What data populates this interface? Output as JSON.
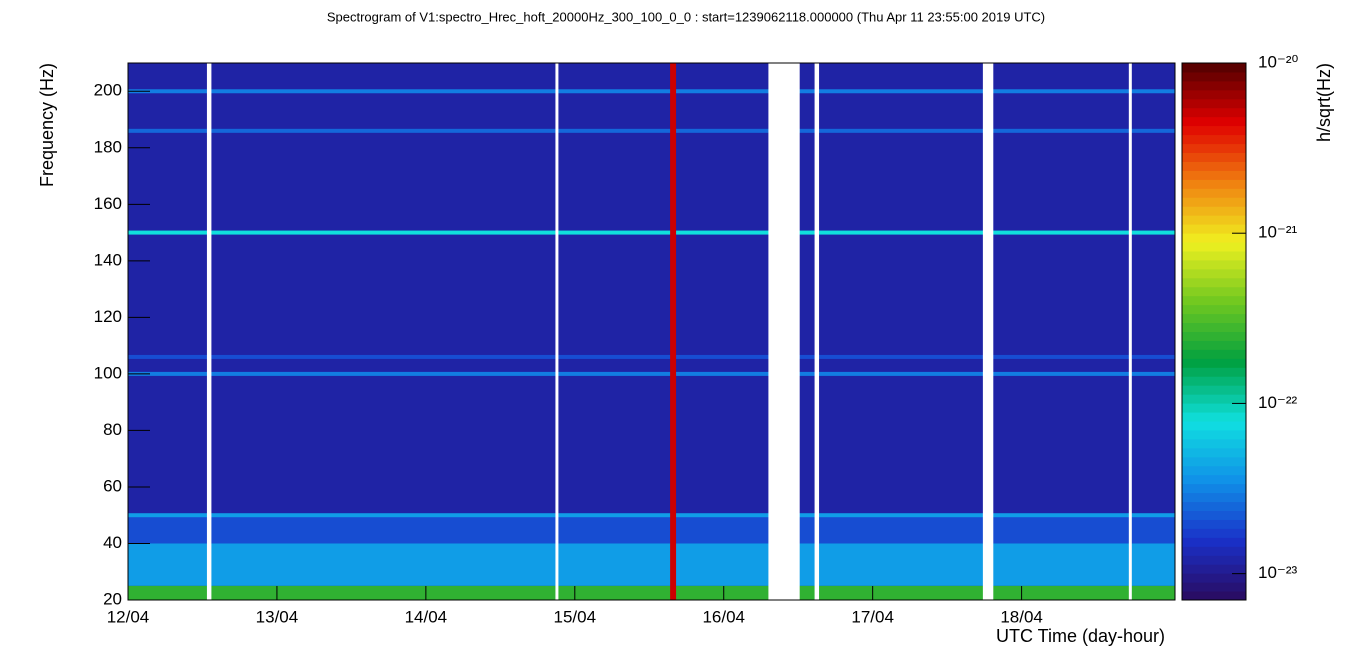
{
  "chart_data": {
    "type": "spectrogram",
    "title": "Spectrogram of V1:spectro_Hrec_hoft_20000Hz_300_100_0_0 : start=1239062118.000000 (Thu Apr 11 23:55:00 2019 UTC)",
    "x_label": "UTC Time (day-hour)",
    "y_label": "Frequency (Hz)",
    "colorbar_label": "h/sqrt(Hz)",
    "xlim": [
      0,
      7.03
    ],
    "xticks": [
      {
        "value": 0,
        "label": "12/04"
      },
      {
        "value": 1,
        "label": "13/04"
      },
      {
        "value": 2,
        "label": "14/04"
      },
      {
        "value": 3,
        "label": "15/04"
      },
      {
        "value": 4,
        "label": "16/04"
      },
      {
        "value": 5,
        "label": "17/04"
      },
      {
        "value": 6,
        "label": "18/04"
      }
    ],
    "ylim": [
      20,
      210
    ],
    "yticks": [
      20,
      40,
      60,
      80,
      100,
      120,
      140,
      160,
      180,
      200
    ],
    "zlim": [
      7e-24,
      1e-20
    ],
    "zlog": true,
    "zticks": [
      {
        "value": 1e-20,
        "label": "10⁻²⁰"
      },
      {
        "value": 1e-21,
        "label": "10⁻²¹"
      },
      {
        "value": 1e-22,
        "label": "10⁻²²"
      },
      {
        "value": 1e-23,
        "label": "10⁻²³"
      }
    ],
    "colormap": [
      "#2a0a5e",
      "#1a30c8",
      "#1090e8",
      "#10e0e0",
      "#00a040",
      "#70c820",
      "#f0f020",
      "#f08010",
      "#e00000",
      "#500000"
    ],
    "background": 1.2e-23,
    "bands": [
      {
        "frequency": [
          40,
          50
        ],
        "value": 2e-23
      },
      {
        "frequency": [
          25,
          40
        ],
        "value": 4e-23
      },
      {
        "frequency": [
          20,
          25
        ],
        "value": 2.5e-22
      }
    ],
    "lines": [
      {
        "frequency": 200,
        "value": 3e-23
      },
      {
        "frequency": 186,
        "value": 2.5e-23
      },
      {
        "frequency": 150,
        "value": 8e-23
      },
      {
        "frequency": 106,
        "value": 2e-23
      },
      {
        "frequency": 100,
        "value": 3e-23
      },
      {
        "frequency": 50,
        "value": 4e-23
      }
    ],
    "glitches": [
      {
        "time": [
          3.64,
          3.68
        ],
        "value": 5e-21
      }
    ],
    "gaps": [
      [
        0.53,
        0.56
      ],
      [
        2.87,
        2.89
      ],
      [
        4.3,
        4.51
      ],
      [
        4.61,
        4.64
      ],
      [
        5.74,
        5.81
      ],
      [
        6.72,
        6.74
      ]
    ]
  }
}
